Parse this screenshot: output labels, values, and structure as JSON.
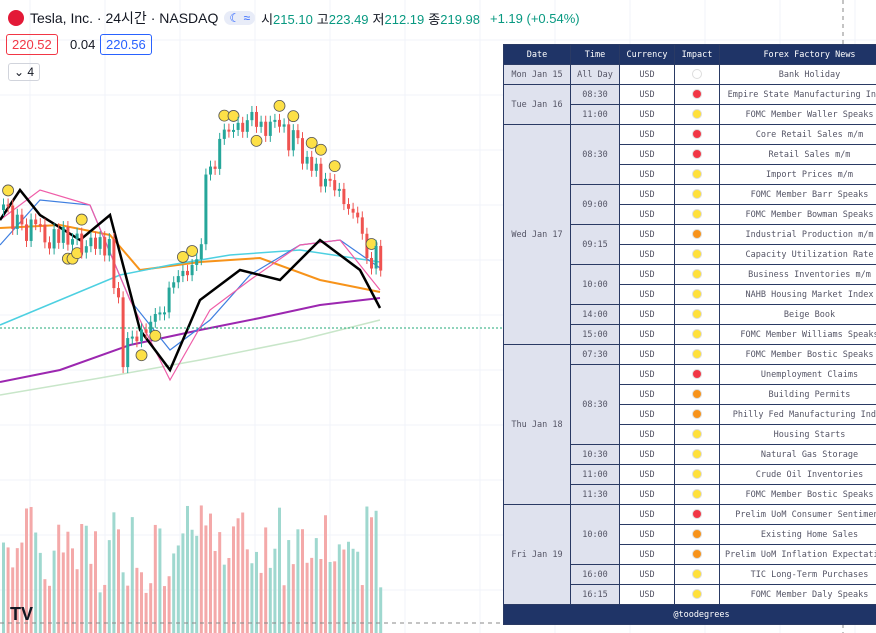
{
  "header": {
    "symbol": "Tesla, Inc. · 24시간 · NASDAQ",
    "ohlc": [
      {
        "label": "시",
        "value": "215.10"
      },
      {
        "label": "고",
        "value": "223.49"
      },
      {
        "label": "저",
        "value": "212.19"
      },
      {
        "label": "종",
        "value": "219.98"
      }
    ],
    "change": "+1.19 (+0.54%)",
    "bid": "220.52",
    "spread": "0.04",
    "ask": "220.56",
    "indicators": "4"
  },
  "table": {
    "columns": [
      "Date",
      "Time",
      "Currency",
      "Impact",
      "Forex Factory News"
    ],
    "footer": "@toodegrees",
    "days": [
      {
        "date": "Mon Jan 15",
        "times": [
          {
            "time": "All Day",
            "events": [
              {
                "currency": "USD",
                "impact": "#ffffff",
                "news": "Bank Holiday"
              }
            ]
          }
        ]
      },
      {
        "date": "Tue Jan 16",
        "times": [
          {
            "time": "08:30",
            "events": [
              {
                "currency": "USD",
                "impact": "#f23645",
                "news": "Empire State Manufacturing Index"
              }
            ]
          },
          {
            "time": "11:00",
            "events": [
              {
                "currency": "USD",
                "impact": "#ffe03a",
                "news": "FOMC Member Waller Speaks"
              }
            ]
          }
        ]
      },
      {
        "date": "Wed Jan 17",
        "times": [
          {
            "time": "08:30",
            "events": [
              {
                "currency": "USD",
                "impact": "#f23645",
                "news": "Core Retail Sales m/m"
              },
              {
                "currency": "USD",
                "impact": "#f23645",
                "news": "Retail Sales m/m"
              },
              {
                "currency": "USD",
                "impact": "#ffe03a",
                "news": "Import Prices m/m"
              }
            ]
          },
          {
            "time": "09:00",
            "events": [
              {
                "currency": "USD",
                "impact": "#ffe03a",
                "news": "FOMC Member Barr Speaks"
              },
              {
                "currency": "USD",
                "impact": "#ffe03a",
                "news": "FOMC Member Bowman Speaks"
              }
            ]
          },
          {
            "time": "09:15",
            "events": [
              {
                "currency": "USD",
                "impact": "#f7931a",
                "news": "Industrial Production m/m"
              },
              {
                "currency": "USD",
                "impact": "#ffe03a",
                "news": "Capacity Utilization Rate"
              }
            ]
          },
          {
            "time": "10:00",
            "events": [
              {
                "currency": "USD",
                "impact": "#ffe03a",
                "news": "Business Inventories m/m"
              },
              {
                "currency": "USD",
                "impact": "#ffe03a",
                "news": "NAHB Housing Market Index"
              }
            ]
          },
          {
            "time": "14:00",
            "events": [
              {
                "currency": "USD",
                "impact": "#ffe03a",
                "news": "Beige Book"
              }
            ]
          },
          {
            "time": "15:00",
            "events": [
              {
                "currency": "USD",
                "impact": "#ffe03a",
                "news": "FOMC Member Williams Speaks"
              }
            ]
          }
        ]
      },
      {
        "date": "Thu Jan 18",
        "times": [
          {
            "time": "07:30",
            "events": [
              {
                "currency": "USD",
                "impact": "#ffe03a",
                "news": "FOMC Member Bostic Speaks"
              }
            ]
          },
          {
            "time": "08:30",
            "events": [
              {
                "currency": "USD",
                "impact": "#f23645",
                "news": "Unemployment Claims"
              },
              {
                "currency": "USD",
                "impact": "#f7931a",
                "news": "Building Permits"
              },
              {
                "currency": "USD",
                "impact": "#f7931a",
                "news": "Philly Fed Manufacturing Index"
              },
              {
                "currency": "USD",
                "impact": "#ffe03a",
                "news": "Housing Starts"
              }
            ]
          },
          {
            "time": "10:30",
            "events": [
              {
                "currency": "USD",
                "impact": "#ffe03a",
                "news": "Natural Gas Storage"
              }
            ]
          },
          {
            "time": "11:00",
            "events": [
              {
                "currency": "USD",
                "impact": "#ffe03a",
                "news": "Crude Oil Inventories"
              }
            ]
          },
          {
            "time": "11:30",
            "events": [
              {
                "currency": "USD",
                "impact": "#ffe03a",
                "news": "FOMC Member Bostic Speaks"
              }
            ]
          }
        ]
      },
      {
        "date": "Fri Jan 19",
        "times": [
          {
            "time": "10:00",
            "events": [
              {
                "currency": "USD",
                "impact": "#f23645",
                "news": "Prelim UoM Consumer Sentiment"
              },
              {
                "currency": "USD",
                "impact": "#f7931a",
                "news": "Existing Home Sales"
              },
              {
                "currency": "USD",
                "impact": "#f7931a",
                "news": "Prelim UoM Inflation Expectations"
              }
            ]
          },
          {
            "time": "16:00",
            "events": [
              {
                "currency": "USD",
                "impact": "#ffe03a",
                "news": "TIC Long-Term Purchases"
              }
            ]
          },
          {
            "time": "16:15",
            "events": [
              {
                "currency": "USD",
                "impact": "#ffe03a",
                "news": "FOMC Member Daly Speaks"
              }
            ]
          }
        ]
      }
    ]
  }
}
